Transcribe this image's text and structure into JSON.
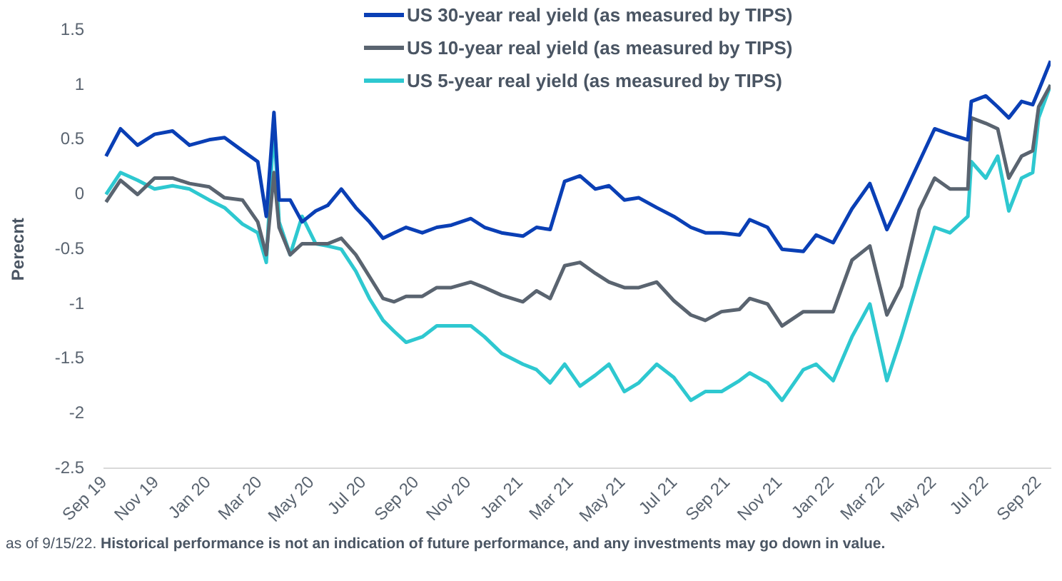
{
  "chart_data": {
    "type": "line",
    "ylabel": "Perecnt",
    "x": [
      "2019-09-03",
      "2019-09-20",
      "2019-10-10",
      "2019-10-30",
      "2019-11-20",
      "2019-12-10",
      "2020-01-02",
      "2020-01-20",
      "2020-02-10",
      "2020-02-28",
      "2020-03-09",
      "2020-03-18",
      "2020-03-24",
      "2020-04-06",
      "2020-04-20",
      "2020-05-06",
      "2020-05-20",
      "2020-06-05",
      "2020-06-22",
      "2020-07-08",
      "2020-07-24",
      "2020-08-06",
      "2020-08-20",
      "2020-09-08",
      "2020-09-25",
      "2020-10-12",
      "2020-11-04",
      "2020-11-20",
      "2020-12-10",
      "2021-01-04",
      "2021-01-20",
      "2021-02-05",
      "2021-02-22",
      "2021-03-12",
      "2021-03-30",
      "2021-04-15",
      "2021-05-03",
      "2021-05-20",
      "2021-06-10",
      "2021-06-30",
      "2021-07-20",
      "2021-08-06",
      "2021-08-25",
      "2021-09-15",
      "2021-09-27",
      "2021-10-18",
      "2021-11-04",
      "2021-11-29",
      "2021-12-14",
      "2022-01-03",
      "2022-01-25",
      "2022-02-15",
      "2022-03-07",
      "2022-03-24",
      "2022-04-14",
      "2022-05-02",
      "2022-05-20",
      "2022-06-10",
      "2022-06-14",
      "2022-07-01",
      "2022-07-15",
      "2022-07-28",
      "2022-08-12",
      "2022-08-25",
      "2022-09-01",
      "2022-09-15"
    ],
    "series": [
      {
        "name": "US 30-year real yield (as measured by TIPS)",
        "color": "#0a3fb5",
        "values": [
          0.35,
          0.6,
          0.45,
          0.55,
          0.58,
          0.45,
          0.5,
          0.52,
          0.4,
          0.3,
          -0.2,
          0.75,
          -0.05,
          -0.05,
          -0.25,
          -0.15,
          -0.1,
          0.05,
          -0.12,
          -0.25,
          -0.4,
          -0.35,
          -0.3,
          -0.35,
          -0.3,
          -0.28,
          -0.22,
          -0.3,
          -0.35,
          -0.38,
          -0.3,
          -0.32,
          0.12,
          0.17,
          0.05,
          0.08,
          -0.05,
          -0.03,
          -0.12,
          -0.2,
          -0.3,
          -0.35,
          -0.35,
          -0.37,
          -0.23,
          -0.3,
          -0.5,
          -0.52,
          -0.37,
          -0.44,
          -0.13,
          0.1,
          -0.32,
          -0.05,
          0.3,
          0.6,
          0.55,
          0.5,
          0.85,
          0.9,
          0.8,
          0.7,
          0.85,
          0.82,
          0.95,
          1.22
        ]
      },
      {
        "name": "US 10-year real yield (as measured by TIPS)",
        "color": "#5a6470",
        "values": [
          -0.07,
          0.13,
          0.0,
          0.15,
          0.15,
          0.1,
          0.07,
          -0.03,
          -0.05,
          -0.25,
          -0.55,
          0.2,
          -0.3,
          -0.55,
          -0.45,
          -0.45,
          -0.45,
          -0.4,
          -0.55,
          -0.75,
          -0.95,
          -0.98,
          -0.93,
          -0.93,
          -0.85,
          -0.85,
          -0.8,
          -0.85,
          -0.92,
          -0.98,
          -0.88,
          -0.95,
          -0.65,
          -0.62,
          -0.72,
          -0.8,
          -0.85,
          -0.85,
          -0.8,
          -0.97,
          -1.1,
          -1.15,
          -1.07,
          -1.05,
          -0.95,
          -1.0,
          -1.2,
          -1.07,
          -1.07,
          -1.07,
          -0.6,
          -0.47,
          -1.1,
          -0.84,
          -0.14,
          0.15,
          0.05,
          0.05,
          0.7,
          0.65,
          0.6,
          0.15,
          0.35,
          0.4,
          0.8,
          1.0
        ]
      },
      {
        "name": "US 5-year real yield (as measured by TIPS)",
        "color": "#2ec8d0",
        "values": [
          0.0,
          0.2,
          0.13,
          0.05,
          0.08,
          0.05,
          -0.05,
          -0.12,
          -0.27,
          -0.35,
          -0.62,
          0.65,
          -0.25,
          -0.55,
          -0.2,
          -0.45,
          -0.47,
          -0.5,
          -0.7,
          -0.95,
          -1.15,
          -1.25,
          -1.35,
          -1.3,
          -1.2,
          -1.2,
          -1.2,
          -1.3,
          -1.45,
          -1.55,
          -1.6,
          -1.72,
          -1.55,
          -1.75,
          -1.65,
          -1.55,
          -1.8,
          -1.72,
          -1.55,
          -1.67,
          -1.88,
          -1.8,
          -1.8,
          -1.7,
          -1.63,
          -1.72,
          -1.88,
          -1.6,
          -1.55,
          -1.7,
          -1.3,
          -1.0,
          -1.7,
          -1.3,
          -0.75,
          -0.3,
          -0.35,
          -0.2,
          0.3,
          0.15,
          0.35,
          -0.15,
          0.15,
          0.2,
          0.7,
          1.0
        ]
      }
    ],
    "xticks": [
      {
        "value": "2019-09-01",
        "label": "Sep 19"
      },
      {
        "value": "2019-11-01",
        "label": "Nov 19"
      },
      {
        "value": "2020-01-01",
        "label": "Jan 20"
      },
      {
        "value": "2020-03-01",
        "label": "Mar 20"
      },
      {
        "value": "2020-05-01",
        "label": "May 20"
      },
      {
        "value": "2020-07-01",
        "label": "Jul 20"
      },
      {
        "value": "2020-09-01",
        "label": "Sep 20"
      },
      {
        "value": "2020-11-01",
        "label": "Nov 20"
      },
      {
        "value": "2021-01-01",
        "label": "Jan 21"
      },
      {
        "value": "2021-03-01",
        "label": "Mar 21"
      },
      {
        "value": "2021-05-01",
        "label": "May 21"
      },
      {
        "value": "2021-07-01",
        "label": "Jul 21"
      },
      {
        "value": "2021-09-01",
        "label": "Sep 21"
      },
      {
        "value": "2021-11-01",
        "label": "Nov 21"
      },
      {
        "value": "2022-01-01",
        "label": "Jan 22"
      },
      {
        "value": "2022-03-01",
        "label": "Mar 22"
      },
      {
        "value": "2022-05-01",
        "label": "May 22"
      },
      {
        "value": "2022-07-01",
        "label": "Jul 22"
      },
      {
        "value": "2022-09-01",
        "label": "Sep 22"
      }
    ],
    "xlim": [
      "2019-09-01",
      "2022-09-15"
    ],
    "ylim": [
      -2.5,
      1.5
    ],
    "yticks": [
      -2.5,
      -2,
      -1.5,
      -1,
      -0.5,
      0,
      0.5,
      1,
      1.5
    ],
    "grid": false,
    "legend": "top",
    "annotations": [
      "as of 9/15/22.",
      "Historical performance is not an indication of future performance, and any investments may go down in value."
    ]
  }
}
